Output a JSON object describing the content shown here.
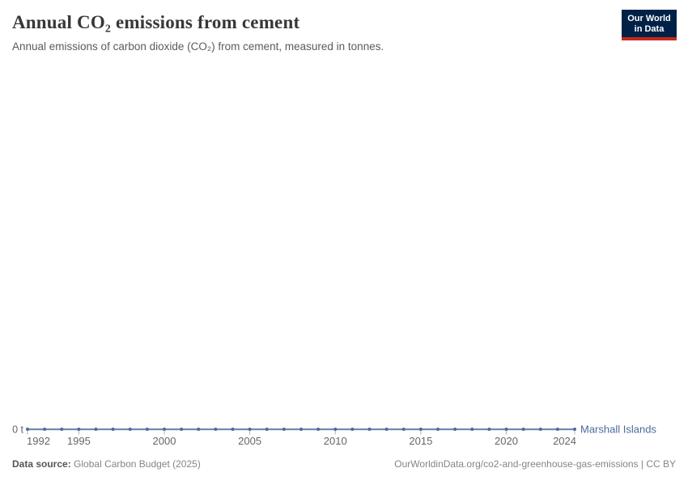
{
  "header": {
    "title": "Annual CO₂ emissions from cement",
    "subtitle": "Annual emissions of carbon dioxide (CO₂) from cement, measured in tonnes.",
    "logo": {
      "line1": "Our World",
      "line2": "in Data"
    }
  },
  "chart_data": {
    "type": "line",
    "title": "Annual CO₂ emissions from cement",
    "xlabel": "",
    "ylabel": "",
    "unit": "t",
    "grid": false,
    "legend_position": "right-of-line-end",
    "x_range": [
      1992,
      2024
    ],
    "ylim": [
      0,
      0
    ],
    "y_axis_ticks": [
      "0 t"
    ],
    "y_axis_zero_label": "0 t",
    "x_ticks": [
      1992,
      1995,
      2000,
      2005,
      2010,
      2015,
      2020,
      2024
    ],
    "series": [
      {
        "name": "Marshall Islands",
        "color": "#4C6A9C",
        "x": [
          1992,
          1993,
          1994,
          1995,
          1996,
          1997,
          1998,
          1999,
          2000,
          2001,
          2002,
          2003,
          2004,
          2005,
          2006,
          2007,
          2008,
          2009,
          2010,
          2011,
          2012,
          2013,
          2014,
          2015,
          2016,
          2017,
          2018,
          2019,
          2020,
          2021,
          2022,
          2023,
          2024
        ],
        "values": [
          0,
          0,
          0,
          0,
          0,
          0,
          0,
          0,
          0,
          0,
          0,
          0,
          0,
          0,
          0,
          0,
          0,
          0,
          0,
          0,
          0,
          0,
          0,
          0,
          0,
          0,
          0,
          0,
          0,
          0,
          0,
          0,
          0
        ]
      }
    ],
    "colors": {
      "axis_line": "#ccd5dd",
      "tick": "#b0b0b0",
      "tick_label": "#666666"
    }
  },
  "footer": {
    "source_label": "Data source:",
    "source_value": "Global Carbon Budget (2025)",
    "attribution": "OurWorldinData.org/co2-and-greenhouse-gas-emissions | CC BY"
  }
}
